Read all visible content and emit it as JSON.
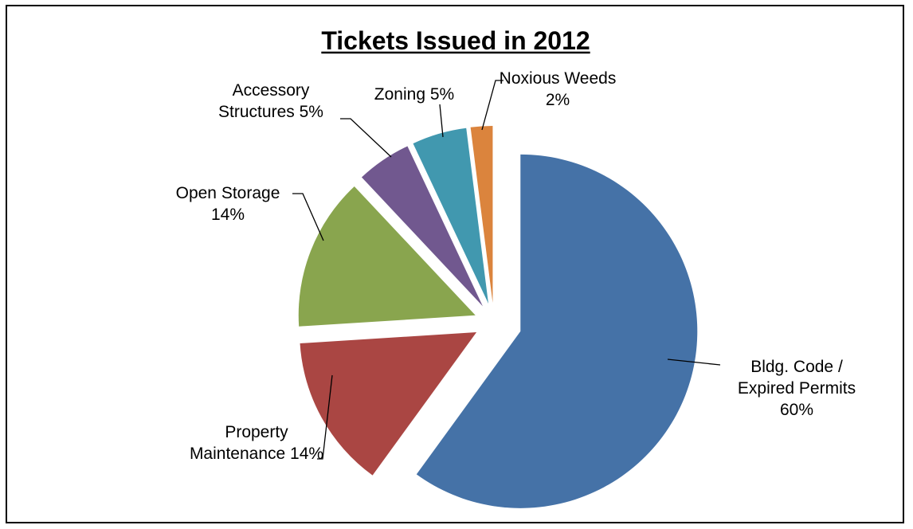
{
  "chart_data": {
    "type": "pie",
    "title": "Tickets Issued in 2012",
    "slices": [
      {
        "name": "Bldg. Code / Expired Permits",
        "value": 60,
        "label_lines": [
          "Bldg. Code /",
          "Expired Permits",
          "60%"
        ],
        "color": "#4572A7"
      },
      {
        "name": "Property Maintenance",
        "value": 14,
        "label_lines": [
          "Property",
          "Maintenance 14%"
        ],
        "color": "#AA4643"
      },
      {
        "name": "Open Storage",
        "value": 14,
        "label_lines": [
          "Open Storage",
          "14%"
        ],
        "color": "#89A54E"
      },
      {
        "name": "Accessory Structures",
        "value": 5,
        "label_lines": [
          "Accessory",
          "Structures 5%"
        ],
        "color": "#71588F"
      },
      {
        "name": "Zoning",
        "value": 5,
        "label_lines": [
          "Zoning 5%"
        ],
        "color": "#4198AF"
      },
      {
        "name": "Noxious Weeds",
        "value": 2,
        "label_lines": [
          "Noxious Weeds",
          "2%"
        ],
        "color": "#DB843D"
      }
    ],
    "exploded": true,
    "legend": "none"
  }
}
